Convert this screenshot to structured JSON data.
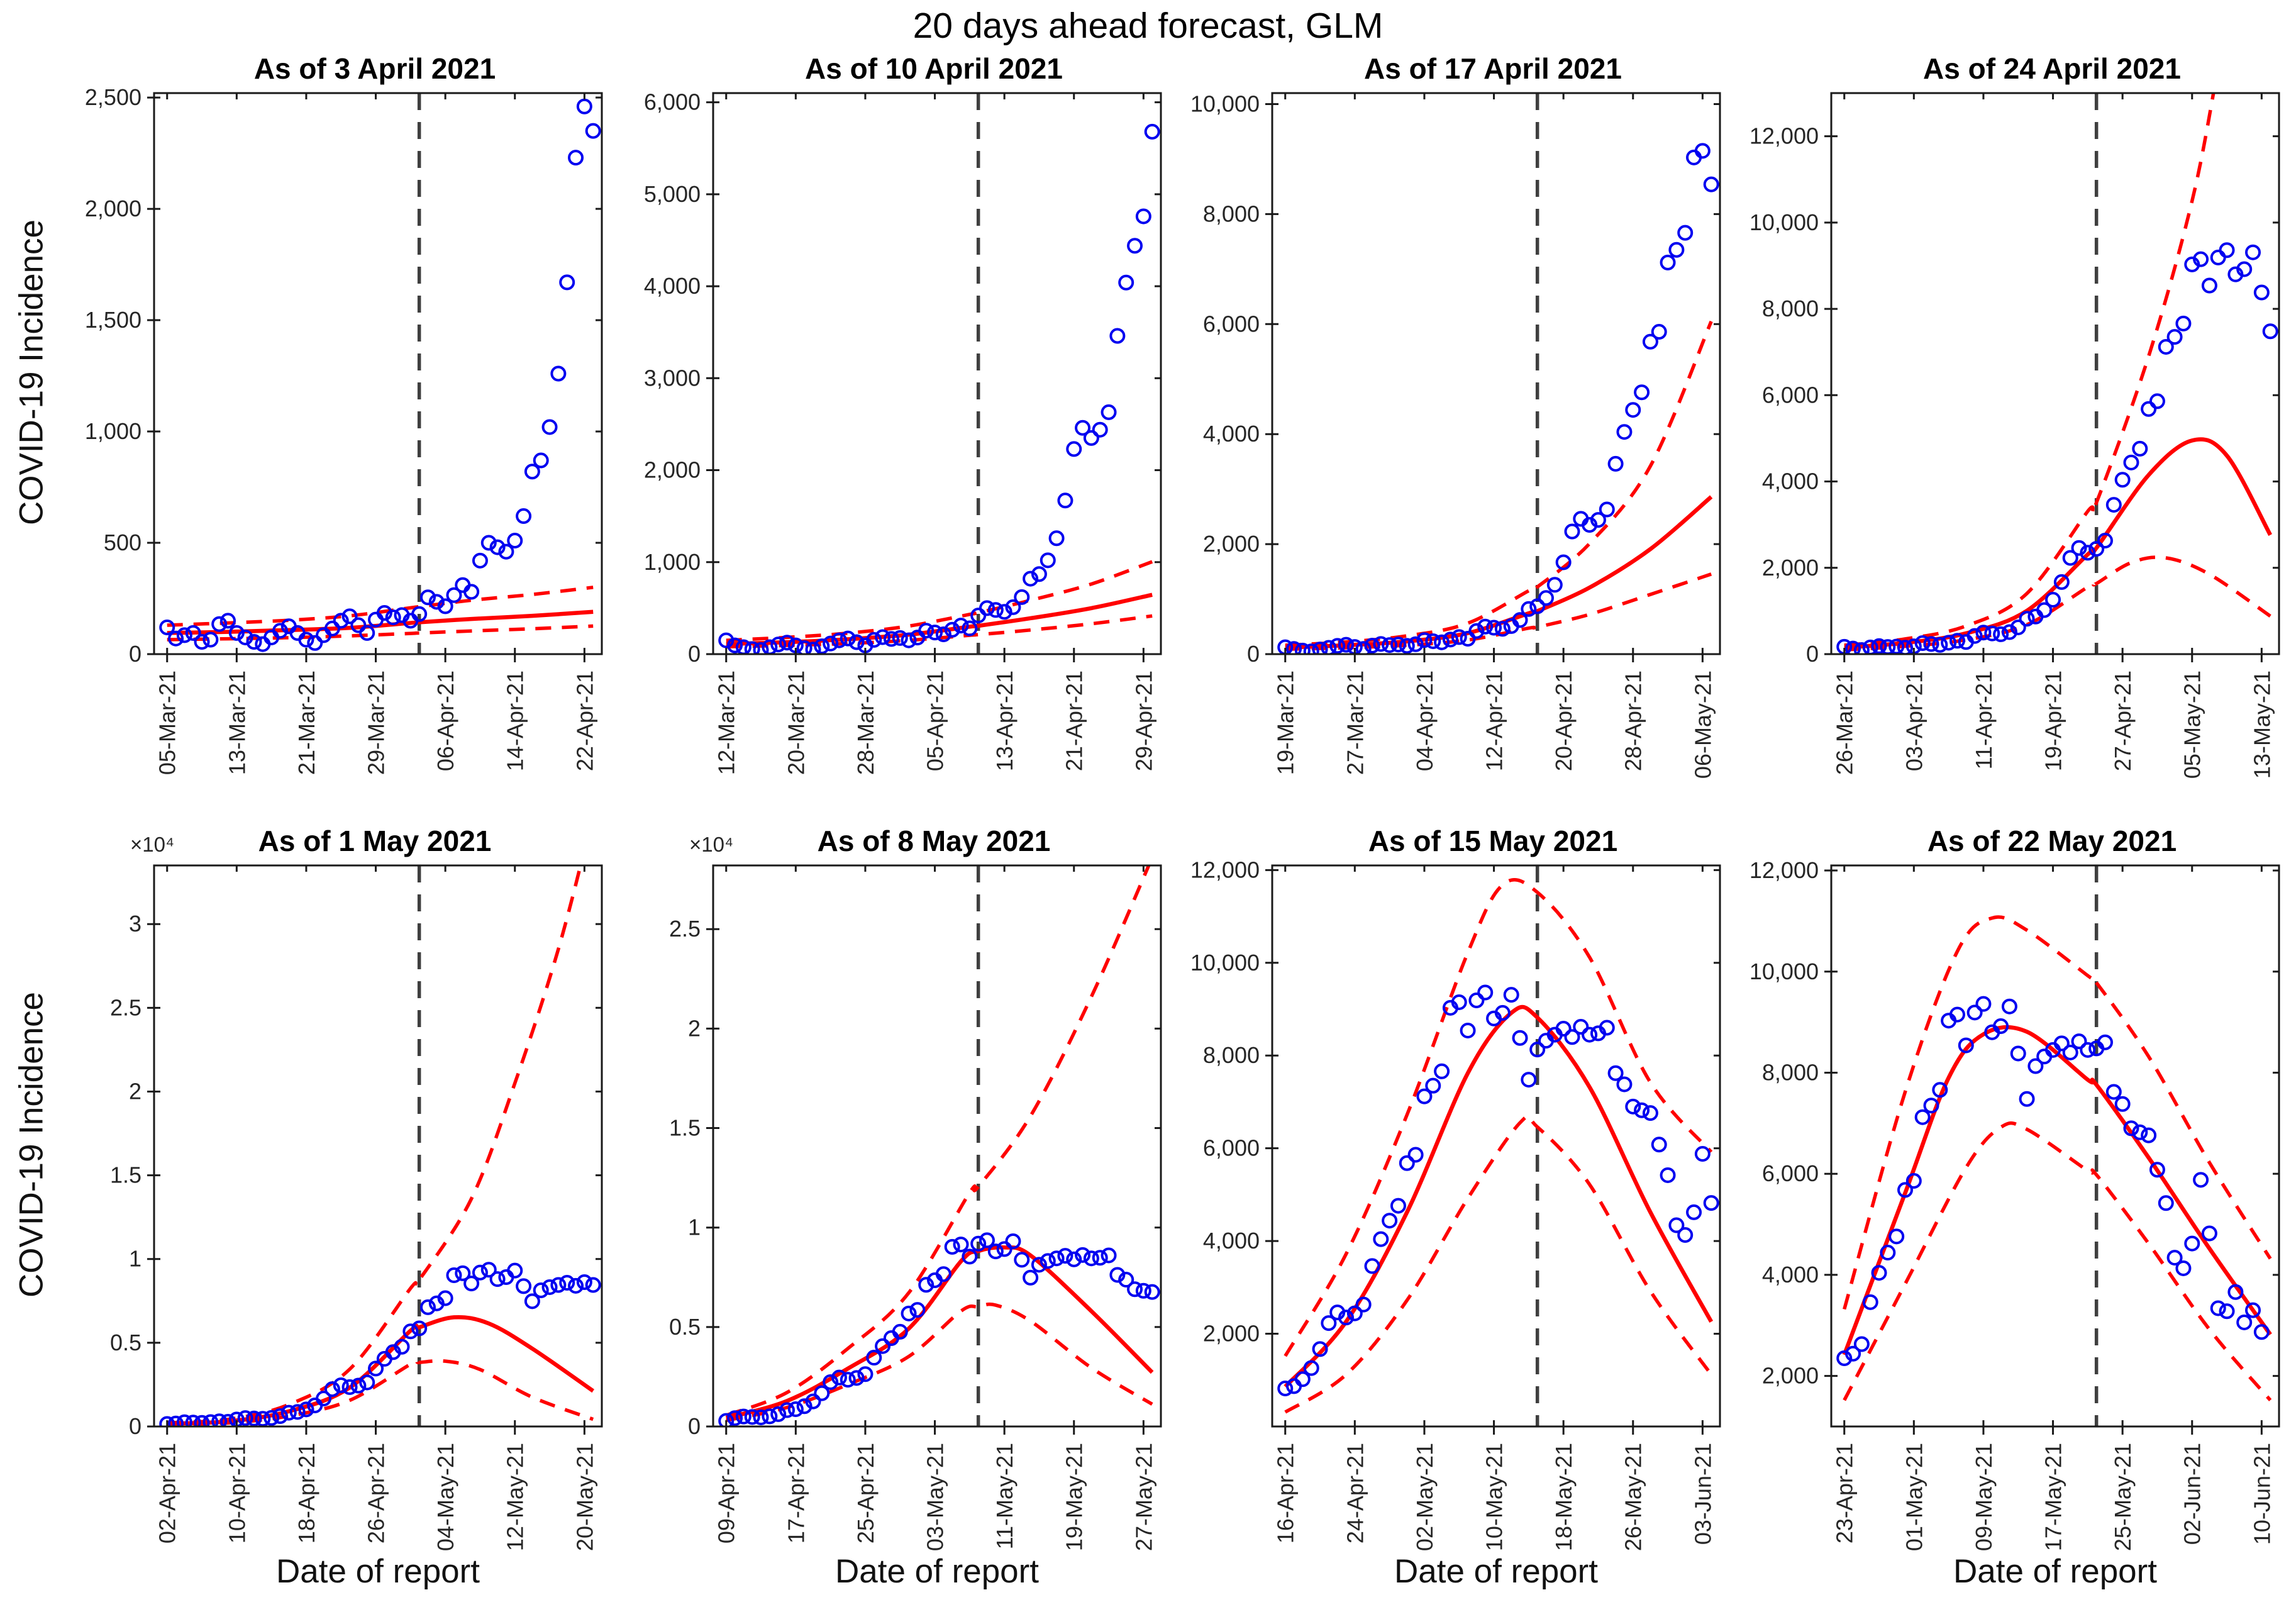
{
  "figure": {
    "title": "20 days ahead forecast, GLM",
    "ylabel": "COVID-19 Incidence",
    "xlabel": "Date of report"
  },
  "colors": {
    "observed": "#0000f0",
    "forecast": "#ff0000",
    "vline": "#3f3f3f",
    "axis": "#1a1a1a",
    "tick_text": "#262626"
  },
  "observed_master": {
    "description": "Daily reported COVID-19 incidence, blue open circles; day 0 = 05-Mar-21, last day = 10-Jun-21",
    "start_date": "05-Mar-21",
    "end_date": "10-Jun-21",
    "values": [
      120,
      70,
      85,
      95,
      55,
      65,
      135,
      150,
      95,
      75,
      55,
      45,
      75,
      105,
      125,
      95,
      65,
      50,
      85,
      115,
      150,
      170,
      130,
      95,
      155,
      185,
      165,
      175,
      150,
      180,
      255,
      235,
      215,
      265,
      310,
      280,
      420,
      500,
      480,
      460,
      510,
      620,
      820,
      870,
      1020,
      1260,
      1670,
      2230,
      2460,
      2350,
      2440,
      2630,
      3460,
      4040,
      4440,
      4760,
      5680,
      5860,
      7120,
      7350,
      7660,
      9030,
      9150,
      8540,
      9190,
      9360,
      8800,
      8920,
      9310,
      8380,
      7480,
      8130,
      8320,
      8450,
      8580,
      8400,
      8620,
      8450,
      8480,
      8600,
      7620,
      7380,
      6900,
      6820,
      6760,
      6080,
      5420,
      4340,
      4130,
      4620,
      5880,
      4820,
      3340,
      3280,
      3660,
      3060,
      3300,
      2870
    ]
  },
  "chart_data": [
    {
      "type": "scatter",
      "title": "As of 3 April 2021",
      "exp_label": "",
      "ylim": [
        0,
        2520
      ],
      "ytick_vals": [
        0,
        500,
        1000,
        1500,
        2000,
        2500
      ],
      "ytick_labels": [
        "0",
        "500",
        "1,000",
        "1,500",
        "2,000",
        "2,500"
      ],
      "xtick_labels": [
        "05-Mar-21",
        "13-Mar-21",
        "21-Mar-21",
        "29-Mar-21",
        "06-Apr-21",
        "14-Apr-21",
        "22-Apr-21"
      ],
      "xtick_days": [
        0,
        8,
        16,
        24,
        32,
        40,
        48
      ],
      "xlim": [
        -1.5,
        50
      ],
      "vline_day": 29,
      "master_offset": 0,
      "fit": [
        [
          0,
          95
        ],
        [
          7,
          100
        ],
        [
          14,
          108
        ],
        [
          21,
          118
        ],
        [
          28,
          140
        ],
        [
          29,
          143
        ],
        [
          35,
          158
        ],
        [
          42,
          172
        ],
        [
          49,
          190
        ]
      ],
      "ub": [
        [
          0,
          130
        ],
        [
          7,
          140
        ],
        [
          14,
          152
        ],
        [
          21,
          172
        ],
        [
          28,
          208
        ],
        [
          29,
          213
        ],
        [
          35,
          242
        ],
        [
          42,
          268
        ],
        [
          49,
          300
        ]
      ],
      "lb": [
        [
          0,
          65
        ],
        [
          7,
          69
        ],
        [
          14,
          74
        ],
        [
          21,
          82
        ],
        [
          28,
          93
        ],
        [
          29,
          95
        ],
        [
          35,
          104
        ],
        [
          42,
          114
        ],
        [
          49,
          126
        ]
      ]
    },
    {
      "type": "scatter",
      "title": "As of 10 April 2021",
      "exp_label": "",
      "ylim": [
        0,
        6100
      ],
      "ytick_vals": [
        0,
        1000,
        2000,
        3000,
        4000,
        5000,
        6000
      ],
      "ytick_labels": [
        "0",
        "1,000",
        "2,000",
        "3,000",
        "4,000",
        "5,000",
        "6,000"
      ],
      "xtick_labels": [
        "12-Mar-21",
        "20-Mar-21",
        "28-Mar-21",
        "05-Apr-21",
        "13-Apr-21",
        "21-Apr-21",
        "29-Apr-21"
      ],
      "xtick_days": [
        0,
        8,
        16,
        24,
        32,
        40,
        48
      ],
      "xlim": [
        -1.5,
        50
      ],
      "vline_day": 29,
      "master_offset": 7,
      "fit": [
        [
          0,
          110
        ],
        [
          7,
          130
        ],
        [
          14,
          162
        ],
        [
          21,
          212
        ],
        [
          28,
          298
        ],
        [
          29,
          308
        ],
        [
          35,
          390
        ],
        [
          42,
          500
        ],
        [
          49,
          645
        ]
      ],
      "ub": [
        [
          0,
          150
        ],
        [
          7,
          182
        ],
        [
          14,
          228
        ],
        [
          21,
          305
        ],
        [
          28,
          432
        ],
        [
          29,
          450
        ],
        [
          35,
          585
        ],
        [
          42,
          762
        ],
        [
          49,
          1005
        ]
      ],
      "lb": [
        [
          0,
          80
        ],
        [
          7,
          95
        ],
        [
          14,
          116
        ],
        [
          21,
          150
        ],
        [
          28,
          205
        ],
        [
          29,
          212
        ],
        [
          35,
          262
        ],
        [
          42,
          330
        ],
        [
          49,
          415
        ]
      ]
    },
    {
      "type": "scatter",
      "title": "As of 17 April 2021",
      "exp_label": "",
      "ylim": [
        0,
        10200
      ],
      "ytick_vals": [
        0,
        2000,
        4000,
        6000,
        8000,
        10000
      ],
      "ytick_labels": [
        "0",
        "2,000",
        "4,000",
        "6,000",
        "8,000",
        "10,000"
      ],
      "xtick_labels": [
        "19-Mar-21",
        "27-Mar-21",
        "04-Apr-21",
        "12-Apr-21",
        "20-Apr-21",
        "28-Apr-21",
        "06-May-21"
      ],
      "xtick_days": [
        0,
        8,
        16,
        24,
        32,
        40,
        48
      ],
      "xlim": [
        -1.5,
        50
      ],
      "vline_day": 29,
      "master_offset": 14,
      "fit": [
        [
          0,
          120
        ],
        [
          7,
          162
        ],
        [
          14,
          232
        ],
        [
          21,
          382
        ],
        [
          28,
          742
        ],
        [
          29,
          782
        ],
        [
          35,
          1210
        ],
        [
          42,
          1910
        ],
        [
          49,
          2860
        ]
      ],
      "ub": [
        [
          0,
          162
        ],
        [
          7,
          222
        ],
        [
          14,
          332
        ],
        [
          21,
          562
        ],
        [
          28,
          1152
        ],
        [
          29,
          1222
        ],
        [
          35,
          2010
        ],
        [
          42,
          3420
        ],
        [
          49,
          6050
        ]
      ],
      "lb": [
        [
          0,
          90
        ],
        [
          7,
          116
        ],
        [
          14,
          162
        ],
        [
          21,
          256
        ],
        [
          28,
          472
        ],
        [
          29,
          492
        ],
        [
          35,
          722
        ],
        [
          42,
          1085
        ],
        [
          49,
          1455
        ]
      ]
    },
    {
      "type": "scatter",
      "title": "As of 24 April 2021",
      "exp_label": "",
      "ylim": [
        0,
        13000
      ],
      "ytick_vals": [
        0,
        2000,
        4000,
        6000,
        8000,
        10000,
        12000
      ],
      "ytick_labels": [
        "0",
        "2,000",
        "4,000",
        "6,000",
        "8,000",
        "10,000",
        "12,000"
      ],
      "xtick_labels": [
        "26-Mar-21",
        "03-Apr-21",
        "11-Apr-21",
        "19-Apr-21",
        "27-Apr-21",
        "05-May-21",
        "13-May-21"
      ],
      "xtick_days": [
        0,
        8,
        16,
        24,
        32,
        40,
        48
      ],
      "xlim": [
        -1.5,
        50
      ],
      "vline_day": 29,
      "master_offset": 21,
      "fit": [
        [
          0,
          150
        ],
        [
          7,
          262
        ],
        [
          14,
          482
        ],
        [
          21,
          1005
        ],
        [
          28,
          2310
        ],
        [
          29,
          2460
        ],
        [
          35,
          4150
        ],
        [
          40,
          4950
        ],
        [
          44,
          4600
        ],
        [
          49,
          2760
        ]
      ],
      "ub": [
        [
          0,
          205
        ],
        [
          7,
          352
        ],
        [
          14,
          652
        ],
        [
          21,
          1405
        ],
        [
          28,
          3310
        ],
        [
          29,
          3510
        ],
        [
          35,
          6900
        ],
        [
          40,
          10500
        ],
        [
          43,
          13600
        ],
        [
          46,
          17000
        ],
        [
          49,
          21000
        ]
      ],
      "lb": [
        [
          0,
          100
        ],
        [
          7,
          182
        ],
        [
          14,
          332
        ],
        [
          21,
          682
        ],
        [
          28,
          1555
        ],
        [
          29,
          1635
        ],
        [
          33,
          2120
        ],
        [
          37,
          2230
        ],
        [
          42,
          1850
        ],
        [
          49,
          880
        ]
      ]
    },
    {
      "type": "scatter",
      "title": "As of 1 May 2021",
      "exp_label": "×10⁴",
      "ylim": [
        0,
        33500
      ],
      "ytick_vals": [
        0,
        5000,
        10000,
        15000,
        20000,
        25000,
        30000
      ],
      "ytick_labels": [
        "0",
        "0.5",
        "1",
        "1.5",
        "2",
        "2.5",
        "3"
      ],
      "xtick_labels": [
        "02-Apr-21",
        "10-Apr-21",
        "18-Apr-21",
        "26-Apr-21",
        "04-May-21",
        "12-May-21",
        "20-May-21"
      ],
      "xtick_days": [
        0,
        8,
        16,
        24,
        32,
        40,
        48
      ],
      "xlim": [
        -1.5,
        50
      ],
      "vline_day": 29,
      "master_offset": 28,
      "fit": [
        [
          0,
          170
        ],
        [
          7,
          305
        ],
        [
          14,
          905
        ],
        [
          21,
          2320
        ],
        [
          28,
          5720
        ],
        [
          29,
          5920
        ],
        [
          33,
          6520
        ],
        [
          37,
          6150
        ],
        [
          42,
          4650
        ],
        [
          49,
          2120
        ]
      ],
      "ub": [
        [
          0,
          225
        ],
        [
          7,
          425
        ],
        [
          14,
          1310
        ],
        [
          21,
          3420
        ],
        [
          28,
          8250
        ],
        [
          29,
          8750
        ],
        [
          35,
          13600
        ],
        [
          40,
          20500
        ],
        [
          45,
          28500
        ],
        [
          49,
          36500
        ]
      ],
      "lb": [
        [
          0,
          122
        ],
        [
          7,
          212
        ],
        [
          14,
          625
        ],
        [
          21,
          1560
        ],
        [
          28,
          3720
        ],
        [
          29,
          3820
        ],
        [
          32,
          3900
        ],
        [
          36,
          3400
        ],
        [
          42,
          1750
        ],
        [
          49,
          430
        ]
      ]
    },
    {
      "type": "scatter",
      "title": "As of 8 May 2021",
      "exp_label": "×10⁴",
      "ylim": [
        0,
        28200
      ],
      "ytick_vals": [
        0,
        5000,
        10000,
        15000,
        20000,
        25000
      ],
      "ytick_labels": [
        "0",
        "0.5",
        "1",
        "1.5",
        "2",
        "2.5"
      ],
      "xtick_labels": [
        "09-Apr-21",
        "17-Apr-21",
        "25-Apr-21",
        "03-May-21",
        "11-May-21",
        "19-May-21",
        "27-May-21"
      ],
      "xtick_days": [
        0,
        8,
        16,
        24,
        32,
        40,
        48
      ],
      "xlim": [
        -1.5,
        50
      ],
      "vline_day": 29,
      "master_offset": 35,
      "fit": [
        [
          0,
          425
        ],
        [
          7,
          1285
        ],
        [
          14,
          2910
        ],
        [
          21,
          4920
        ],
        [
          27,
          8300
        ],
        [
          29,
          8820
        ],
        [
          32,
          9000
        ],
        [
          35,
          8600
        ],
        [
          42,
          5800
        ],
        [
          49,
          2720
        ]
      ],
      "ub": [
        [
          0,
          560
        ],
        [
          7,
          1710
        ],
        [
          14,
          3920
        ],
        [
          21,
          6720
        ],
        [
          28,
          11750
        ],
        [
          29,
          12050
        ],
        [
          35,
          15600
        ],
        [
          42,
          21600
        ],
        [
          49,
          28600
        ]
      ],
      "lb": [
        [
          0,
          305
        ],
        [
          7,
          955
        ],
        [
          14,
          2110
        ],
        [
          21,
          3520
        ],
        [
          27,
          5800
        ],
        [
          29,
          6020
        ],
        [
          31,
          6100
        ],
        [
          35,
          5300
        ],
        [
          42,
          2950
        ],
        [
          49,
          1120
        ]
      ]
    },
    {
      "type": "scatter",
      "title": "As of 15 May 2021",
      "exp_label": "",
      "ylim": [
        0,
        12100
      ],
      "ytick_vals": [
        2000,
        4000,
        6000,
        8000,
        10000,
        12000
      ],
      "ytick_labels": [
        "2,000",
        "4,000",
        "6,000",
        "8,000",
        "10,000",
        "12,000"
      ],
      "xtick_labels": [
        "16-Apr-21",
        "24-Apr-21",
        "02-May-21",
        "10-May-21",
        "18-May-21",
        "26-May-21",
        "03-Jun-21"
      ],
      "xtick_days": [
        0,
        8,
        16,
        24,
        32,
        40,
        48
      ],
      "xlim": [
        -1.5,
        50
      ],
      "vline_day": 29,
      "master_offset": 42,
      "fit": [
        [
          0,
          860
        ],
        [
          7,
          2260
        ],
        [
          14,
          4620
        ],
        [
          21,
          7620
        ],
        [
          26,
          8920
        ],
        [
          29,
          8820
        ],
        [
          35,
          7320
        ],
        [
          42,
          4620
        ],
        [
          49,
          2260
        ]
      ],
      "ub": [
        [
          0,
          1520
        ],
        [
          7,
          3720
        ],
        [
          14,
          6720
        ],
        [
          21,
          10220
        ],
        [
          25,
          11680
        ],
        [
          29,
          11520
        ],
        [
          35,
          10120
        ],
        [
          42,
          7420
        ],
        [
          49,
          5920
        ]
      ],
      "lb": [
        [
          0,
          310
        ],
        [
          7,
          1120
        ],
        [
          14,
          2720
        ],
        [
          21,
          4920
        ],
        [
          27,
          6550
        ],
        [
          29,
          6460
        ],
        [
          35,
          5220
        ],
        [
          42,
          2920
        ],
        [
          49,
          1120
        ]
      ]
    },
    {
      "type": "scatter",
      "title": "As of 22 May 2021",
      "exp_label": "",
      "ylim": [
        1000,
        12100
      ],
      "ytick_vals": [
        2000,
        4000,
        6000,
        8000,
        10000,
        12000
      ],
      "ytick_labels": [
        "2,000",
        "4,000",
        "6,000",
        "8,000",
        "10,000",
        "12,000"
      ],
      "xtick_labels": [
        "23-Apr-21",
        "01-May-21",
        "09-May-21",
        "17-May-21",
        "25-May-21",
        "02-Jun-21",
        "10-Jun-21"
      ],
      "xtick_days": [
        0,
        8,
        16,
        24,
        32,
        40,
        48
      ],
      "xlim": [
        -1.5,
        50
      ],
      "vline_day": 29,
      "master_offset": 49,
      "fit": [
        [
          0,
          2420
        ],
        [
          7,
          5620
        ],
        [
          12,
          7900
        ],
        [
          16,
          8760
        ],
        [
          21,
          8810
        ],
        [
          28,
          7860
        ],
        [
          29,
          7760
        ],
        [
          35,
          6320
        ],
        [
          42,
          4520
        ],
        [
          49,
          2820
        ]
      ],
      "ub": [
        [
          0,
          3320
        ],
        [
          7,
          7620
        ],
        [
          13,
          10400
        ],
        [
          17,
          11060
        ],
        [
          21,
          10820
        ],
        [
          28,
          9920
        ],
        [
          29,
          9780
        ],
        [
          35,
          8320
        ],
        [
          42,
          6220
        ],
        [
          49,
          4320
        ]
      ],
      "lb": [
        [
          0,
          1520
        ],
        [
          7,
          3820
        ],
        [
          14,
          6120
        ],
        [
          18,
          6920
        ],
        [
          21,
          6880
        ],
        [
          28,
          6060
        ],
        [
          29,
          5980
        ],
        [
          35,
          4620
        ],
        [
          42,
          2920
        ],
        [
          49,
          1520
        ]
      ]
    }
  ]
}
